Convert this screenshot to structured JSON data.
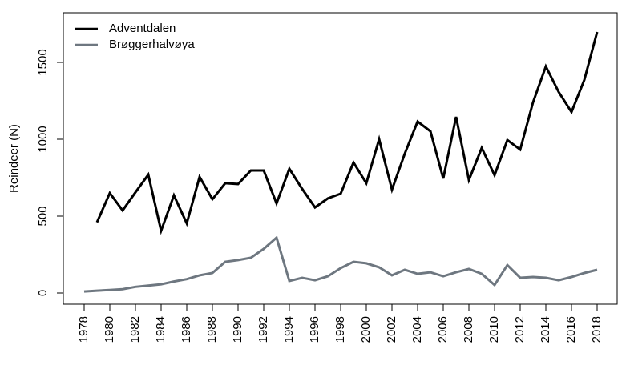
{
  "chart_data": {
    "type": "line",
    "title": "",
    "xlabel": "",
    "ylabel": "Reindeer (N)",
    "xlim": [
      1976.5,
      2019.5
    ],
    "ylim": [
      -75,
      1775
    ],
    "grid": false,
    "legend_position": "top-left",
    "x_ticks": [
      1978,
      1980,
      1982,
      1984,
      1986,
      1988,
      1990,
      1992,
      1994,
      1996,
      1998,
      2000,
      2002,
      2004,
      2006,
      2008,
      2010,
      2012,
      2014,
      2016,
      2018
    ],
    "y_ticks": [
      0,
      500,
      1000,
      1500
    ],
    "series": [
      {
        "name": "Adventdalen",
        "color": "#000000",
        "x": [
          1979,
          1980,
          1981,
          1982,
          1983,
          1984,
          1985,
          1986,
          1987,
          1988,
          1989,
          1990,
          1991,
          1992,
          1993,
          1994,
          1995,
          1996,
          1997,
          1998,
          1999,
          2000,
          2001,
          2002,
          2003,
          2004,
          2005,
          2006,
          2007,
          2008,
          2009,
          2010,
          2011,
          2012,
          2013,
          2014,
          2015,
          2016,
          2017,
          2018
        ],
        "values": [
          460,
          650,
          537,
          655,
          770,
          405,
          635,
          453,
          755,
          610,
          714,
          709,
          797,
          797,
          583,
          808,
          677,
          557,
          615,
          646,
          849,
          714,
          1000,
          672,
          906,
          1115,
          1052,
          745,
          1146,
          735,
          943,
          766,
          995,
          933,
          1240,
          1474,
          1308,
          1177,
          1386,
          1698
        ]
      },
      {
        "name": "Brøggerhalvøya",
        "color": "#6E7780",
        "x": [
          1978,
          1979,
          1980,
          1981,
          1982,
          1983,
          1984,
          1985,
          1986,
          1987,
          1988,
          1989,
          1990,
          1991,
          1992,
          1993,
          1994,
          1995,
          1996,
          1997,
          1998,
          1999,
          2000,
          2001,
          2002,
          2003,
          2004,
          2005,
          2006,
          2007,
          2008,
          2009,
          2010,
          2011,
          2012,
          2013,
          2014,
          2015,
          2016,
          2017,
          2018
        ],
        "values": [
          10,
          15,
          20,
          25,
          40,
          48,
          57,
          75,
          90,
          115,
          130,
          203,
          214,
          229,
          287,
          360,
          78,
          99,
          83,
          109,
          162,
          203,
          193,
          167,
          115,
          151,
          125,
          135,
          109,
          135,
          156,
          125,
          52,
          182,
          99,
          104,
          99,
          83,
          104,
          130,
          151
        ]
      }
    ]
  }
}
